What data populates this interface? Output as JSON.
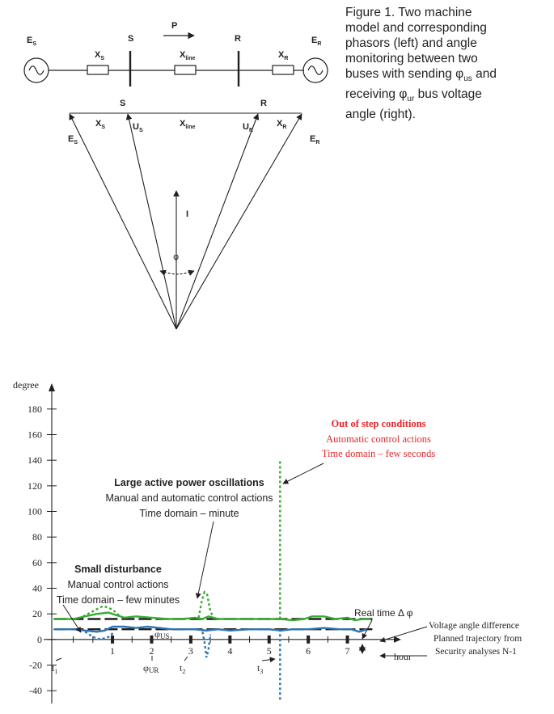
{
  "caption": {
    "line1": "Figure 1. Two machine",
    "line2": "model and corresponding",
    "line3": "phasors (left) and angle",
    "line4": "monitoring between two",
    "line5_pre": "buses with sending φ",
    "line5_sub": "us",
    "line5_post": " and",
    "line6_pre": "receiving φ",
    "line6_sub": "ur",
    "line6_post": " bus voltage",
    "line7": "angle (right)."
  },
  "circuit": {
    "es_main": "E",
    "es_sub": "S",
    "xs_main": "X",
    "xs_sub": "S",
    "s_bus": "S",
    "power_label": "P",
    "xline_main": "X",
    "xline_sub": "line",
    "r_bus": "R",
    "xr_main": "X",
    "xr_sub": "R",
    "er_main": "E",
    "er_sub": "R"
  },
  "phasor": {
    "s_label": "S",
    "r_label": "R",
    "xs_main": "X",
    "xs_sub": "S",
    "us_main": "U",
    "us_sub": "S",
    "xline_main": "X",
    "xline_sub": "line",
    "ur_main": "U",
    "ur_sub": "R",
    "xr_main": "X",
    "xr_sub": "R",
    "es_main": "E",
    "es_sub": "S",
    "er_main": "E",
    "er_sub": "R",
    "current_label": "I",
    "angle_label": "φ"
  },
  "chart_data": {
    "type": "line",
    "ylabel": "degree",
    "xlabel": "hour",
    "ylim": [
      -50,
      190
    ],
    "xlim": [
      -0.55,
      8.0
    ],
    "y_ticks": [
      180,
      160,
      140,
      120,
      100,
      80,
      60,
      40,
      20,
      0,
      -20,
      -40
    ],
    "x_ticks": [
      1,
      2,
      3,
      4,
      5,
      6,
      7
    ],
    "colors": {
      "green": "#3aaa35",
      "blue": "#2f75b5",
      "dark": "#231f20",
      "red": "#e8262b"
    },
    "series": [
      {
        "name": "φUS",
        "color": "#3aaa35",
        "x": [
          -0.5,
          0,
          0.3,
          0.6,
          0.9,
          1.1,
          1.3,
          1.6,
          2.0,
          2.4,
          2.8,
          3.1,
          3.3,
          3.45,
          3.7,
          4.2,
          4.8,
          5.3,
          5.6,
          5.9,
          6.1,
          6.4,
          6.7,
          7.0,
          7.2,
          7.4,
          7.6
        ],
        "y": [
          16,
          16,
          18,
          20,
          21,
          19,
          17,
          18,
          17,
          16,
          16,
          17,
          16,
          18,
          16,
          16,
          16,
          16,
          15,
          16,
          18,
          18,
          16,
          17,
          15,
          16,
          16
        ]
      },
      {
        "name": "φUR",
        "color": "#2f75b5",
        "x": [
          -0.5,
          0,
          0.3,
          0.6,
          0.8,
          1.0,
          1.3,
          1.6,
          1.9,
          2.2,
          2.5,
          2.8,
          3.1,
          3.4,
          3.7,
          4.0,
          4.5,
          5.0,
          5.3,
          5.6,
          6.0,
          6.4,
          6.8,
          7.1,
          7.3,
          7.5
        ],
        "y": [
          8,
          8,
          7,
          6,
          7,
          10,
          10,
          9,
          10,
          9,
          8,
          8,
          8,
          7,
          8,
          7,
          8,
          8,
          7,
          8,
          8,
          9,
          8,
          8,
          6,
          8
        ]
      }
    ],
    "disturbances": [
      {
        "kind": "small",
        "color": "#3aaa35",
        "x": [
          0.25,
          0.5,
          0.75,
          0.9,
          1.05,
          1.2
        ],
        "y": [
          18,
          22,
          26,
          25,
          22,
          18
        ]
      },
      {
        "kind": "small",
        "color": "#2f75b5",
        "x": [
          0.3,
          0.5,
          0.7,
          0.9,
          1.05
        ],
        "y": [
          6,
          2,
          0,
          2,
          6
        ]
      },
      {
        "kind": "large",
        "color": "#3aaa35",
        "x": [
          3.2,
          3.28,
          3.35,
          3.42,
          3.5,
          3.6
        ],
        "y": [
          17,
          30,
          37,
          35,
          22,
          16
        ]
      },
      {
        "kind": "large",
        "color": "#2f75b5",
        "x": [
          3.3,
          3.35,
          3.4,
          3.45,
          3.5
        ],
        "y": [
          6,
          -2,
          -14,
          -8,
          4
        ]
      },
      {
        "kind": "oos",
        "color": "#3aaa35",
        "x": [
          5.28,
          5.28
        ],
        "y": [
          16,
          141
        ]
      },
      {
        "kind": "oos",
        "color": "#2f75b5",
        "x": [
          5.28,
          5.28
        ],
        "y": [
          8,
          -48
        ]
      }
    ],
    "planned": [
      {
        "y": 16
      },
      {
        "y": 8
      }
    ],
    "annotations": {
      "oos_title": "Out of step conditions",
      "oos_line2": "Automatic control actions",
      "oos_line3": "Time domain – few seconds",
      "lapo_title": "Large active power oscillations",
      "lapo_line2": "Manual and automatic control actions",
      "lapo_line3": "Time domain – minute",
      "sd_title": "Small disturbance",
      "sd_line2": "Manual control actions",
      "sd_line3": "Time domain – few minutes",
      "real_time": "Real time Δ φ",
      "vad_line1": "Voltage angle difference",
      "vad_line2": "Planned trajectory from",
      "vad_line3": "Security analyses N-1",
      "phi_us_main": "φ",
      "phi_us_sub": "US",
      "phi_ur_main": "φ",
      "phi_ur_sub": "UR",
      "t1_main": "t",
      "t1_sub": "1",
      "t2_main": "t",
      "t2_sub": "2",
      "t3_main": "t",
      "t3_sub": "3"
    }
  }
}
